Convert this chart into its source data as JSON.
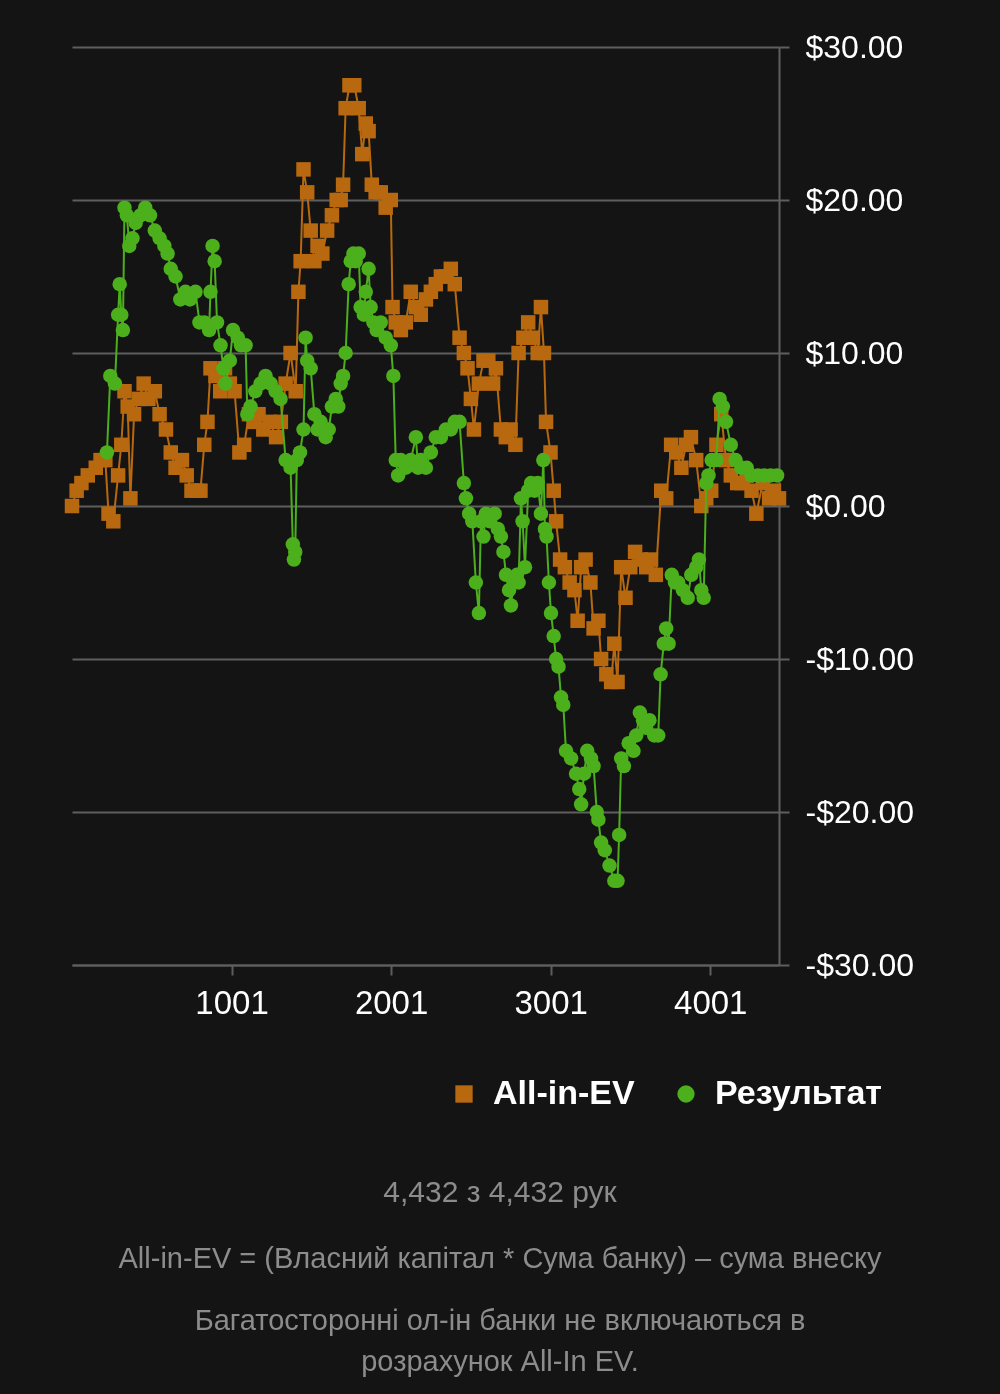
{
  "chart_data": {
    "type": "line",
    "xlim": [
      1,
      4432
    ],
    "xticks": [
      1001,
      2001,
      3001,
      4001
    ],
    "ylim": [
      -30,
      30
    ],
    "yticks": [
      {
        "value": 30,
        "label": "$30.00"
      },
      {
        "value": 20,
        "label": "$20.00"
      },
      {
        "value": 10,
        "label": "$10.00"
      },
      {
        "value": 0,
        "label": "$0.00"
      },
      {
        "value": -10,
        "label": "-$10.00"
      },
      {
        "value": -20,
        "label": "-$20.00"
      },
      {
        "value": -30,
        "label": "-$30.00"
      }
    ],
    "grid": "y",
    "legend": "bottom right",
    "line_style": "solid",
    "series": [
      {
        "name": "All-in-EV",
        "color": "#b8690f",
        "marker": "square",
        "x": [
          1,
          30,
          60,
          100,
          150,
          180,
          210,
          230,
          260,
          290,
          310,
          330,
          350,
          367,
          390,
          420,
          450,
          480,
          520,
          550,
          590,
          620,
          650,
          690,
          720,
          750,
          780,
          806,
          830,
          850,
          869,
          900,
          930,
          960,
          990,
          1020,
          1050,
          1080,
          1110,
          1140,
          1170,
          1200,
          1240,
          1280,
          1310,
          1340,
          1371,
          1403,
          1420,
          1434,
          1452,
          1475,
          1497,
          1520,
          1540,
          1570,
          1600,
          1630,
          1660,
          1685,
          1700,
          1716,
          1740,
          1770,
          1798,
          1820,
          1842,
          1860,
          1880,
          1904,
          1936,
          1967,
          1999,
          2010,
          2030,
          2062,
          2093,
          2124,
          2156,
          2187,
          2219,
          2250,
          2281,
          2313,
          2344,
          2375,
          2400,
          2430,
          2457,
          2480,
          2501,
          2520,
          2551,
          2580,
          2610,
          2640,
          2658,
          2689,
          2720,
          2750,
          2780,
          2800,
          2830,
          2860,
          2890,
          2920,
          2940,
          2959,
          2972,
          3000,
          3020,
          3035,
          3060,
          3090,
          3120,
          3150,
          3170,
          3192,
          3220,
          3250,
          3270,
          3300,
          3317,
          3350,
          3380,
          3400,
          3420,
          3443,
          3470,
          3500,
          3530,
          3568,
          3600,
          3630,
          3660,
          3694,
          3725,
          3756,
          3788,
          3820,
          3850,
          3880,
          3913,
          3945,
          3976,
          4007,
          4040,
          4070,
          4100,
          4130,
          4170,
          4196,
          4230,
          4260,
          4290,
          4330,
          4370,
          4400,
          4432
        ],
        "values": [
          0,
          1,
          1.5,
          2,
          2.5,
          3,
          3,
          -0.5,
          -1,
          2,
          4,
          7.5,
          6.5,
          0.5,
          6,
          7,
          8,
          7,
          7.5,
          6,
          5,
          3.5,
          2.5,
          3,
          2,
          1,
          1,
          1,
          4,
          5.5,
          9,
          8.5,
          7.5,
          9,
          8,
          7.5,
          3.5,
          4,
          6,
          5.5,
          6,
          5,
          5.5,
          4.5,
          5.5,
          8,
          10,
          7.5,
          14,
          16,
          22,
          20.5,
          18,
          16,
          17,
          16.5,
          18,
          19,
          20,
          20,
          21,
          26,
          27.5,
          27.5,
          26,
          23,
          25,
          24.5,
          21,
          20.5,
          20.5,
          19.5,
          20,
          13,
          12,
          11.5,
          12,
          14,
          13,
          12.5,
          13.5,
          14,
          14.5,
          15,
          15,
          15.5,
          14.5,
          11,
          10,
          9,
          7,
          5,
          8,
          9.5,
          9.5,
          8,
          9,
          5,
          4.5,
          5,
          4,
          10,
          11,
          12,
          11,
          10,
          13,
          10,
          5.5,
          3.5,
          1,
          -1,
          -3.5,
          -4,
          -5,
          -5.5,
          -7.5,
          -4,
          -3.5,
          -5,
          -8,
          -7.5,
          -10,
          -11,
          -11.5,
          -9,
          -11.5,
          -4,
          -6,
          -4,
          -3,
          -3.5,
          -4,
          -3.5,
          -4.5,
          1,
          0.5,
          4,
          3.5,
          2.5,
          4,
          4.5,
          3,
          0,
          0.5,
          1,
          4,
          6,
          3,
          2,
          1.5,
          1.5,
          2,
          1,
          -0.5,
          1.5,
          0.5,
          1,
          0.5
        ]
      },
      {
        "name": "Результат",
        "color": "#4caf1c",
        "marker": "circle",
        "x": [
          220,
          241,
          270,
          290,
          300,
          310,
          320,
          330,
          345,
          360,
          380,
          400,
          430,
          460,
          490,
          520,
          550,
          580,
          600,
          620,
          650,
          680,
          712,
          740,
          775,
          800,
          830,
          860,
          869,
          882,
          895,
          910,
          932,
          950,
          963,
          990,
          1010,
          1040,
          1060,
          1089,
          1100,
          1120,
          1150,
          1183,
          1214,
          1246,
          1277,
          1308,
          1340,
          1371,
          1385,
          1392,
          1400,
          1410,
          1430,
          1452,
          1465,
          1475,
          1497,
          1520,
          1540,
          1559,
          1591,
          1610,
          1630,
          1654,
          1670,
          1685,
          1700,
          1716,
          1735,
          1748,
          1765,
          1779,
          1798,
          1810,
          1830,
          1842,
          1860,
          1873,
          1890,
          1910,
          1936,
          1967,
          1999,
          2015,
          2030,
          2045,
          2062,
          2093,
          2124,
          2156,
          2170,
          2187,
          2219,
          2250,
          2281,
          2313,
          2344,
          2375,
          2400,
          2430,
          2457,
          2470,
          2490,
          2510,
          2532,
          2551,
          2564,
          2580,
          2595,
          2620,
          2650,
          2670,
          2689,
          2705,
          2721,
          2740,
          2752,
          2770,
          2790,
          2800,
          2815,
          2825,
          2840,
          2860,
          2878,
          2900,
          2920,
          2940,
          2955,
          2965,
          2975,
          2990,
          3003,
          3020,
          3035,
          3050,
          3066,
          3080,
          3097,
          3129,
          3160,
          3180,
          3192,
          3210,
          3230,
          3254,
          3270,
          3290,
          3300,
          3317,
          3340,
          3370,
          3400,
          3420,
          3430,
          3443,
          3460,
          3490,
          3520,
          3537,
          3560,
          3580,
          3599,
          3620,
          3650,
          3675,
          3690,
          3710,
          3725,
          3740,
          3760,
          3780,
          3800,
          3830,
          3860,
          3882,
          3913,
          3930,
          3945,
          3960,
          3976,
          3990,
          4010,
          4040,
          4060,
          4080,
          4100,
          4130,
          4160,
          4196,
          4230,
          4260,
          4300,
          4340,
          4380,
          4420
        ],
        "values": [
          3.5,
          8.5,
          8,
          12.5,
          14.5,
          12.5,
          11.5,
          19.5,
          19,
          17,
          17.5,
          18.5,
          19,
          19.5,
          19,
          18,
          17.5,
          17,
          16.5,
          15.5,
          15,
          13.5,
          14,
          13.5,
          14,
          12,
          12,
          11.5,
          14,
          17,
          16,
          12,
          10.5,
          9,
          8,
          9.5,
          11.5,
          11,
          10.5,
          10.5,
          6,
          6.5,
          7.5,
          8,
          8.5,
          8,
          7.5,
          7,
          3,
          2.5,
          -2.5,
          -3.5,
          -3,
          3,
          3.5,
          5,
          11,
          9.5,
          9,
          6,
          5,
          5.5,
          4.5,
          5,
          6.5,
          7,
          6.5,
          8,
          8.5,
          10,
          14.5,
          16,
          16.5,
          16,
          16.5,
          13,
          12.5,
          14,
          15.5,
          13,
          12,
          11.5,
          12,
          11,
          10.5,
          8.5,
          3,
          2,
          3,
          2.5,
          3,
          4.5,
          2.5,
          3,
          2.5,
          3.5,
          4.5,
          4.5,
          5,
          5,
          5.5,
          5.5,
          1.5,
          0.5,
          -0.5,
          -1,
          -5,
          -7,
          -1,
          -2,
          -0.5,
          -1,
          -0.5,
          -1.5,
          -2,
          -3,
          -4.5,
          -5.5,
          -6.5,
          -5,
          -4.5,
          -5,
          0.5,
          -1,
          -4,
          1,
          1.5,
          1,
          1.5,
          -0.5,
          3,
          -1.5,
          -2,
          -5,
          -7,
          -8.5,
          -10,
          -10.5,
          -12.5,
          -13,
          -16,
          -16.5,
          -17.5,
          -18.5,
          -19.5,
          -17.5,
          -16,
          -16.5,
          -17,
          -20,
          -20.5,
          -22,
          -22.5,
          -23.5,
          -24.5,
          -24.5,
          -21.5,
          -16.5,
          -17,
          -15.5,
          -16,
          -15,
          -13.5,
          -14,
          -14.5,
          -14,
          -15,
          -15,
          -11,
          -9,
          -8,
          -9,
          -4.5,
          -5,
          -5,
          -5.5,
          -6,
          -4.5,
          -4,
          -3.5,
          -5.5,
          -6,
          1.5,
          2,
          3,
          3,
          7,
          6.5,
          5.5,
          4,
          3,
          2.5,
          2.5,
          2,
          2,
          2,
          2,
          2
        ]
      }
    ],
    "annotations": [
      "4,432 з 4,432 рук",
      "All-in-EV = (Власний капітал * Сума банку) – сума внеску",
      "Багатосторонні ол-ін банки не включаються в розрахунок All-In EV."
    ]
  }
}
